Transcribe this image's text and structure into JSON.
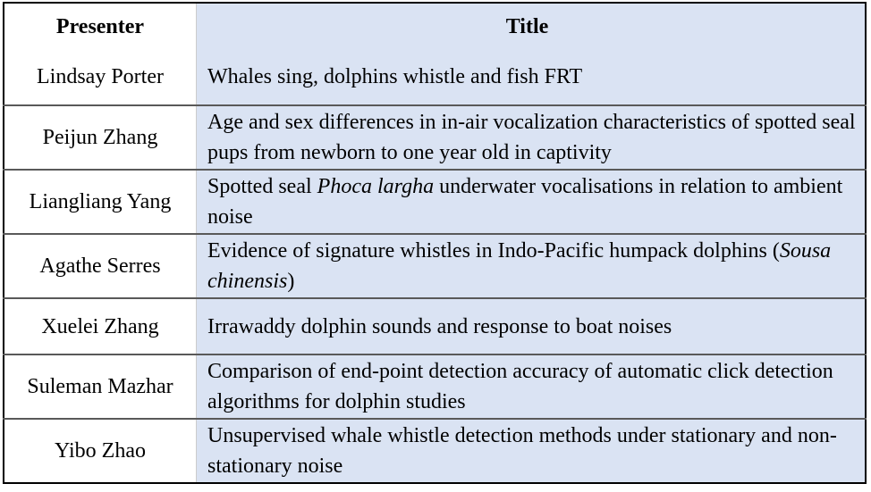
{
  "colors": {
    "title_column_bg": "#dae3f3",
    "border": "#000000",
    "row_separator": "#595959"
  },
  "headers": {
    "presenter": "Presenter",
    "title": "Title"
  },
  "rows": [
    {
      "presenter": "Lindsay Porter",
      "title": [
        {
          "text": "Whales sing, dolphins whistle and fish FRT",
          "italic": false
        }
      ]
    },
    {
      "presenter": "Peijun Zhang",
      "title": [
        {
          "text": "Age and sex differences in in-air vocalization characteristics of spotted seal pups from newborn to one year old in captivity",
          "italic": false
        }
      ]
    },
    {
      "presenter": "Liangliang Yang",
      "title": [
        {
          "text": "Spotted seal ",
          "italic": false
        },
        {
          "text": "Phoca largha",
          "italic": true
        },
        {
          "text": " underwater vocalisations in relation to ambient noise",
          "italic": false
        }
      ]
    },
    {
      "presenter": "Agathe Serres",
      "title": [
        {
          "text": "Evidence of signature whistles in Indo-Pacific humpack dolphins (",
          "italic": false
        },
        {
          "text": "Sousa chinensis",
          "italic": true
        },
        {
          "text": ")",
          "italic": false
        }
      ]
    },
    {
      "presenter": "Xuelei Zhang",
      "title": [
        {
          "text": "Irrawaddy dolphin sounds and response to boat noises",
          "italic": false
        }
      ]
    },
    {
      "presenter": "Suleman Mazhar",
      "title": [
        {
          "text": "Comparison of end-point detection accuracy of automatic click detection algorithms for dolphin studies",
          "italic": false
        }
      ]
    },
    {
      "presenter": "Yibo Zhao",
      "title": [
        {
          "text": "Unsupervised whale whistle detection methods under stationary and non-stationary noise",
          "italic": false
        }
      ]
    }
  ]
}
